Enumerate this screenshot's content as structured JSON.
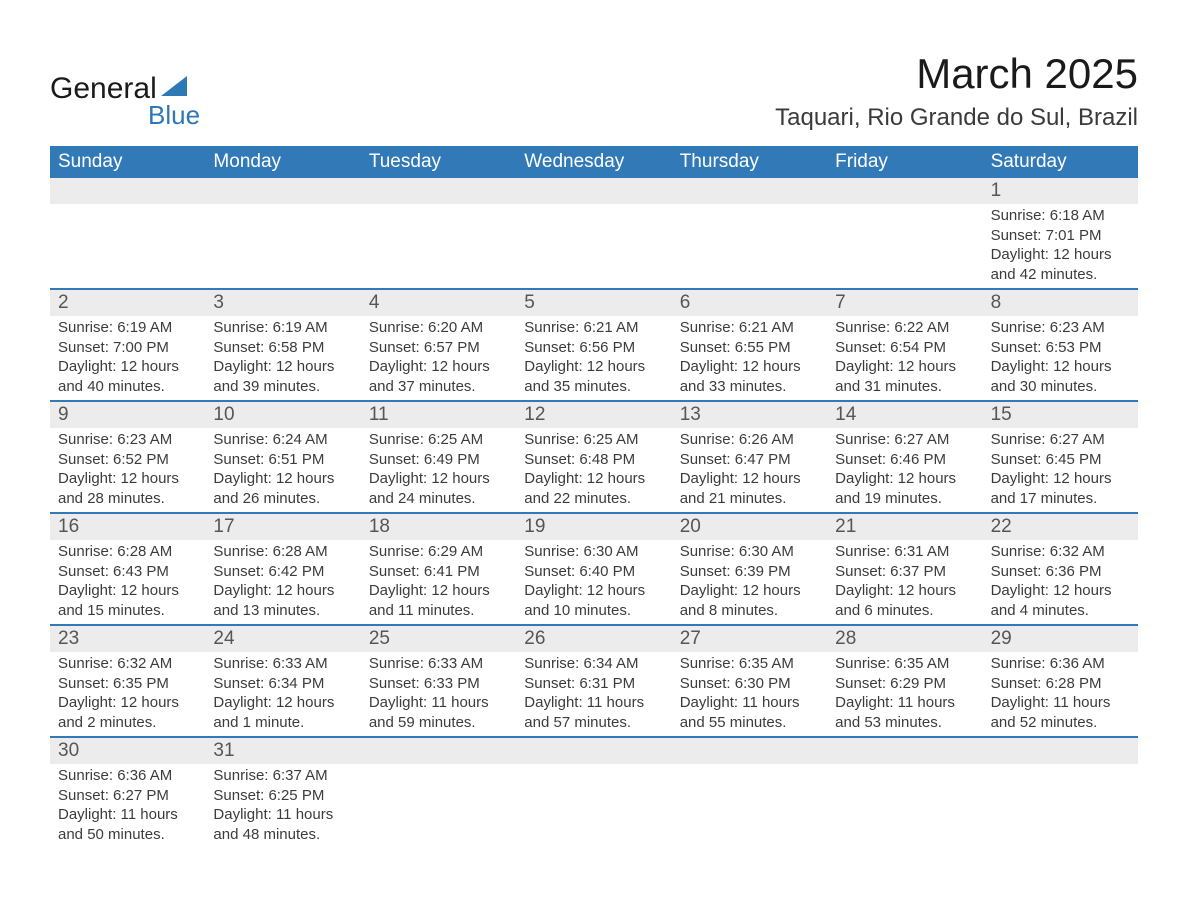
{
  "brand": {
    "name": "General",
    "sub": "Blue",
    "sail_color": "#2f78b7"
  },
  "colors": {
    "header_bg": "#327ab7",
    "header_text": "#ffffff",
    "daynum_bg": "#ececec",
    "text": "#3a3a3a",
    "border": "#327ab7",
    "page_bg": "#ffffff"
  },
  "title": "March 2025",
  "location": "Taquari, Rio Grande do Sul, Brazil",
  "days_of_week": [
    "Sunday",
    "Monday",
    "Tuesday",
    "Wednesday",
    "Thursday",
    "Friday",
    "Saturday"
  ],
  "weeks": [
    [
      {
        "n": "",
        "lines": [
          "",
          "",
          "",
          ""
        ]
      },
      {
        "n": "",
        "lines": [
          "",
          "",
          "",
          ""
        ]
      },
      {
        "n": "",
        "lines": [
          "",
          "",
          "",
          ""
        ]
      },
      {
        "n": "",
        "lines": [
          "",
          "",
          "",
          ""
        ]
      },
      {
        "n": "",
        "lines": [
          "",
          "",
          "",
          ""
        ]
      },
      {
        "n": "",
        "lines": [
          "",
          "",
          "",
          ""
        ]
      },
      {
        "n": "1",
        "lines": [
          "Sunrise: 6:18 AM",
          "Sunset: 7:01 PM",
          "Daylight: 12 hours",
          "and 42 minutes."
        ]
      }
    ],
    [
      {
        "n": "2",
        "lines": [
          "Sunrise: 6:19 AM",
          "Sunset: 7:00 PM",
          "Daylight: 12 hours",
          "and 40 minutes."
        ]
      },
      {
        "n": "3",
        "lines": [
          "Sunrise: 6:19 AM",
          "Sunset: 6:58 PM",
          "Daylight: 12 hours",
          "and 39 minutes."
        ]
      },
      {
        "n": "4",
        "lines": [
          "Sunrise: 6:20 AM",
          "Sunset: 6:57 PM",
          "Daylight: 12 hours",
          "and 37 minutes."
        ]
      },
      {
        "n": "5",
        "lines": [
          "Sunrise: 6:21 AM",
          "Sunset: 6:56 PM",
          "Daylight: 12 hours",
          "and 35 minutes."
        ]
      },
      {
        "n": "6",
        "lines": [
          "Sunrise: 6:21 AM",
          "Sunset: 6:55 PM",
          "Daylight: 12 hours",
          "and 33 minutes."
        ]
      },
      {
        "n": "7",
        "lines": [
          "Sunrise: 6:22 AM",
          "Sunset: 6:54 PM",
          "Daylight: 12 hours",
          "and 31 minutes."
        ]
      },
      {
        "n": "8",
        "lines": [
          "Sunrise: 6:23 AM",
          "Sunset: 6:53 PM",
          "Daylight: 12 hours",
          "and 30 minutes."
        ]
      }
    ],
    [
      {
        "n": "9",
        "lines": [
          "Sunrise: 6:23 AM",
          "Sunset: 6:52 PM",
          "Daylight: 12 hours",
          "and 28 minutes."
        ]
      },
      {
        "n": "10",
        "lines": [
          "Sunrise: 6:24 AM",
          "Sunset: 6:51 PM",
          "Daylight: 12 hours",
          "and 26 minutes."
        ]
      },
      {
        "n": "11",
        "lines": [
          "Sunrise: 6:25 AM",
          "Sunset: 6:49 PM",
          "Daylight: 12 hours",
          "and 24 minutes."
        ]
      },
      {
        "n": "12",
        "lines": [
          "Sunrise: 6:25 AM",
          "Sunset: 6:48 PM",
          "Daylight: 12 hours",
          "and 22 minutes."
        ]
      },
      {
        "n": "13",
        "lines": [
          "Sunrise: 6:26 AM",
          "Sunset: 6:47 PM",
          "Daylight: 12 hours",
          "and 21 minutes."
        ]
      },
      {
        "n": "14",
        "lines": [
          "Sunrise: 6:27 AM",
          "Sunset: 6:46 PM",
          "Daylight: 12 hours",
          "and 19 minutes."
        ]
      },
      {
        "n": "15",
        "lines": [
          "Sunrise: 6:27 AM",
          "Sunset: 6:45 PM",
          "Daylight: 12 hours",
          "and 17 minutes."
        ]
      }
    ],
    [
      {
        "n": "16",
        "lines": [
          "Sunrise: 6:28 AM",
          "Sunset: 6:43 PM",
          "Daylight: 12 hours",
          "and 15 minutes."
        ]
      },
      {
        "n": "17",
        "lines": [
          "Sunrise: 6:28 AM",
          "Sunset: 6:42 PM",
          "Daylight: 12 hours",
          "and 13 minutes."
        ]
      },
      {
        "n": "18",
        "lines": [
          "Sunrise: 6:29 AM",
          "Sunset: 6:41 PM",
          "Daylight: 12 hours",
          "and 11 minutes."
        ]
      },
      {
        "n": "19",
        "lines": [
          "Sunrise: 6:30 AM",
          "Sunset: 6:40 PM",
          "Daylight: 12 hours",
          "and 10 minutes."
        ]
      },
      {
        "n": "20",
        "lines": [
          "Sunrise: 6:30 AM",
          "Sunset: 6:39 PM",
          "Daylight: 12 hours",
          "and 8 minutes."
        ]
      },
      {
        "n": "21",
        "lines": [
          "Sunrise: 6:31 AM",
          "Sunset: 6:37 PM",
          "Daylight: 12 hours",
          "and 6 minutes."
        ]
      },
      {
        "n": "22",
        "lines": [
          "Sunrise: 6:32 AM",
          "Sunset: 6:36 PM",
          "Daylight: 12 hours",
          "and 4 minutes."
        ]
      }
    ],
    [
      {
        "n": "23",
        "lines": [
          "Sunrise: 6:32 AM",
          "Sunset: 6:35 PM",
          "Daylight: 12 hours",
          "and 2 minutes."
        ]
      },
      {
        "n": "24",
        "lines": [
          "Sunrise: 6:33 AM",
          "Sunset: 6:34 PM",
          "Daylight: 12 hours",
          "and 1 minute."
        ]
      },
      {
        "n": "25",
        "lines": [
          "Sunrise: 6:33 AM",
          "Sunset: 6:33 PM",
          "Daylight: 11 hours",
          "and 59 minutes."
        ]
      },
      {
        "n": "26",
        "lines": [
          "Sunrise: 6:34 AM",
          "Sunset: 6:31 PM",
          "Daylight: 11 hours",
          "and 57 minutes."
        ]
      },
      {
        "n": "27",
        "lines": [
          "Sunrise: 6:35 AM",
          "Sunset: 6:30 PM",
          "Daylight: 11 hours",
          "and 55 minutes."
        ]
      },
      {
        "n": "28",
        "lines": [
          "Sunrise: 6:35 AM",
          "Sunset: 6:29 PM",
          "Daylight: 11 hours",
          "and 53 minutes."
        ]
      },
      {
        "n": "29",
        "lines": [
          "Sunrise: 6:36 AM",
          "Sunset: 6:28 PM",
          "Daylight: 11 hours",
          "and 52 minutes."
        ]
      }
    ],
    [
      {
        "n": "30",
        "lines": [
          "Sunrise: 6:36 AM",
          "Sunset: 6:27 PM",
          "Daylight: 11 hours",
          "and 50 minutes."
        ]
      },
      {
        "n": "31",
        "lines": [
          "Sunrise: 6:37 AM",
          "Sunset: 6:25 PM",
          "Daylight: 11 hours",
          "and 48 minutes."
        ]
      },
      {
        "n": "",
        "lines": [
          "",
          "",
          "",
          ""
        ]
      },
      {
        "n": "",
        "lines": [
          "",
          "",
          "",
          ""
        ]
      },
      {
        "n": "",
        "lines": [
          "",
          "",
          "",
          ""
        ]
      },
      {
        "n": "",
        "lines": [
          "",
          "",
          "",
          ""
        ]
      },
      {
        "n": "",
        "lines": [
          "",
          "",
          "",
          ""
        ]
      }
    ]
  ]
}
